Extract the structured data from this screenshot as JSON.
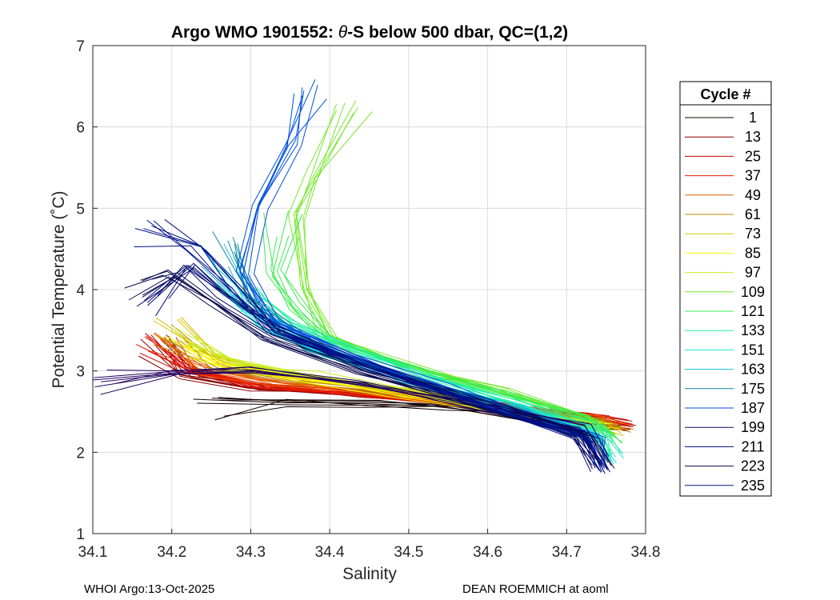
{
  "chart_data": {
    "type": "line",
    "title_prefix": "Argo WMO 1901552: ",
    "title_theta": "θ",
    "title_suffix": "-S below 500 dbar,  QC=(1,2)",
    "xlabel": "Salinity",
    "ylabel": "Potential Temperature (˚C)",
    "xlim": [
      34.1,
      34.8
    ],
    "ylim": [
      1,
      7
    ],
    "xticks": [
      "34.1",
      "34.2",
      "34.3",
      "34.4",
      "34.5",
      "34.6",
      "34.7",
      "34.8"
    ],
    "yticks": [
      "1",
      "2",
      "3",
      "4",
      "5",
      "6",
      "7"
    ],
    "grid": true,
    "legend_title": "Cycle #",
    "legend_position": "right-outside",
    "legend_entries": [
      {
        "label": "1",
        "color": "#140000"
      },
      {
        "label": "13",
        "color": "#8a0000"
      },
      {
        "label": "25",
        "color": "#c80000"
      },
      {
        "label": "37",
        "color": "#e61e00"
      },
      {
        "label": "49",
        "color": "#e65a00"
      },
      {
        "label": "61",
        "color": "#b88a00"
      },
      {
        "label": "73",
        "color": "#d8c000"
      },
      {
        "label": "85",
        "color": "#ffff00"
      },
      {
        "label": "97",
        "color": "#c8f020"
      },
      {
        "label": "109",
        "color": "#7ae830"
      },
      {
        "label": "121",
        "color": "#3aeb50"
      },
      {
        "label": "133",
        "color": "#20f0a0"
      },
      {
        "label": "151",
        "color": "#1ae8d8"
      },
      {
        "label": "163",
        "color": "#10c0d8"
      },
      {
        "label": "175",
        "color": "#0a8aa0"
      },
      {
        "label": "187",
        "color": "#0050e0"
      },
      {
        "label": "199",
        "color": "#200060"
      },
      {
        "label": "211",
        "color": "#000870"
      },
      {
        "label": "223",
        "color": "#0a0a50"
      },
      {
        "label": "235",
        "color": "#00108a"
      }
    ],
    "series_summary": [
      {
        "name": "1",
        "color": "#140000",
        "points": [
          [
            34.25,
            2.55
          ],
          [
            34.35,
            2.6
          ],
          [
            34.45,
            2.6
          ],
          [
            34.55,
            2.55
          ],
          [
            34.65,
            2.45
          ],
          [
            34.75,
            2.3
          ]
        ]
      },
      {
        "name": "13",
        "color": "#8a0000",
        "points": [
          [
            34.18,
            3.35
          ],
          [
            34.22,
            2.95
          ],
          [
            34.3,
            2.8
          ],
          [
            34.45,
            2.7
          ],
          [
            34.6,
            2.55
          ],
          [
            34.72,
            2.4
          ],
          [
            34.78,
            2.3
          ]
        ]
      },
      {
        "name": "25",
        "color": "#c80000",
        "points": [
          [
            34.17,
            3.3
          ],
          [
            34.22,
            3.0
          ],
          [
            34.3,
            2.82
          ],
          [
            34.45,
            2.72
          ],
          [
            34.6,
            2.58
          ],
          [
            34.72,
            2.45
          ],
          [
            34.78,
            2.35
          ]
        ]
      },
      {
        "name": "37",
        "color": "#e61e00",
        "points": [
          [
            34.18,
            3.25
          ],
          [
            34.23,
            2.98
          ],
          [
            34.32,
            2.8
          ],
          [
            34.47,
            2.7
          ],
          [
            34.62,
            2.55
          ],
          [
            34.74,
            2.42
          ],
          [
            34.77,
            2.32
          ]
        ]
      },
      {
        "name": "49",
        "color": "#e65a00",
        "points": [
          [
            34.19,
            3.3
          ],
          [
            34.24,
            3.0
          ],
          [
            34.33,
            2.85
          ],
          [
            34.48,
            2.72
          ],
          [
            34.63,
            2.55
          ],
          [
            34.74,
            2.4
          ],
          [
            34.77,
            2.3
          ]
        ]
      },
      {
        "name": "61",
        "color": "#b88a00",
        "points": [
          [
            34.2,
            3.4
          ],
          [
            34.26,
            3.05
          ],
          [
            34.36,
            2.9
          ],
          [
            34.5,
            2.72
          ],
          [
            34.64,
            2.5
          ],
          [
            34.74,
            2.38
          ],
          [
            34.77,
            2.28
          ]
        ]
      },
      {
        "name": "73",
        "color": "#d8c000",
        "points": [
          [
            34.2,
            3.5
          ],
          [
            34.26,
            3.15
          ],
          [
            34.36,
            2.95
          ],
          [
            34.5,
            2.75
          ],
          [
            34.64,
            2.5
          ],
          [
            34.74,
            2.35
          ],
          [
            34.77,
            2.25
          ]
        ]
      },
      {
        "name": "85",
        "color": "#ffff00",
        "points": [
          [
            34.21,
            3.3
          ],
          [
            34.27,
            3.05
          ],
          [
            34.37,
            2.92
          ],
          [
            34.5,
            2.7
          ],
          [
            34.65,
            2.48
          ],
          [
            34.75,
            2.33
          ]
        ]
      },
      {
        "name": "97",
        "color": "#c8f020",
        "points": [
          [
            34.21,
            3.4
          ],
          [
            34.28,
            3.1
          ],
          [
            34.38,
            2.95
          ],
          [
            34.5,
            2.72
          ],
          [
            34.65,
            2.45
          ],
          [
            34.75,
            2.3
          ]
        ]
      },
      {
        "name": "109",
        "color": "#7ae830",
        "points": [
          [
            34.43,
            6.2
          ],
          [
            34.38,
            5.4
          ],
          [
            34.36,
            4.9
          ],
          [
            34.37,
            4.0
          ],
          [
            34.4,
            3.4
          ],
          [
            34.5,
            3.05
          ],
          [
            34.62,
            2.75
          ],
          [
            34.72,
            2.45
          ],
          [
            34.76,
            2.2
          ]
        ]
      },
      {
        "name": "121",
        "color": "#3aeb50",
        "points": [
          [
            34.34,
            4.8
          ],
          [
            34.33,
            4.2
          ],
          [
            34.36,
            3.8
          ],
          [
            34.4,
            3.4
          ],
          [
            34.52,
            3.0
          ],
          [
            34.64,
            2.65
          ],
          [
            34.73,
            2.4
          ],
          [
            34.76,
            2.15
          ]
        ]
      },
      {
        "name": "133",
        "color": "#20f0a0",
        "points": [
          [
            34.3,
            3.9
          ],
          [
            34.35,
            3.6
          ],
          [
            34.42,
            3.3
          ],
          [
            34.52,
            2.95
          ],
          [
            34.64,
            2.6
          ],
          [
            34.74,
            2.3
          ],
          [
            34.76,
            1.95
          ]
        ]
      },
      {
        "name": "151",
        "color": "#1ae8d8",
        "points": [
          [
            34.27,
            4.0
          ],
          [
            34.32,
            3.55
          ],
          [
            34.4,
            3.2
          ],
          [
            34.52,
            2.85
          ],
          [
            34.64,
            2.55
          ],
          [
            34.74,
            2.25
          ],
          [
            34.76,
            1.9
          ]
        ]
      },
      {
        "name": "163",
        "color": "#10c0d8",
        "points": [
          [
            34.26,
            4.4
          ],
          [
            34.3,
            3.8
          ],
          [
            34.38,
            3.3
          ],
          [
            34.5,
            2.9
          ],
          [
            34.64,
            2.55
          ],
          [
            34.74,
            2.2
          ]
        ]
      },
      {
        "name": "175",
        "color": "#0a8aa0",
        "points": [
          [
            34.27,
            4.6
          ],
          [
            34.3,
            3.9
          ],
          [
            34.38,
            3.3
          ],
          [
            34.5,
            2.88
          ],
          [
            34.64,
            2.5
          ],
          [
            34.74,
            2.15
          ]
        ]
      },
      {
        "name": "187",
        "color": "#0050e0",
        "points": [
          [
            34.38,
            6.5
          ],
          [
            34.35,
            5.8
          ],
          [
            34.31,
            5.0
          ],
          [
            34.29,
            4.2
          ],
          [
            34.33,
            3.6
          ],
          [
            34.42,
            3.2
          ],
          [
            34.54,
            2.8
          ],
          [
            34.66,
            2.45
          ],
          [
            34.74,
            2.15
          ],
          [
            34.745,
            1.85
          ]
        ]
      },
      {
        "name": "199",
        "color": "#200060",
        "points": [
          [
            34.12,
            2.85
          ],
          [
            34.2,
            3.0
          ],
          [
            34.3,
            3.0
          ],
          [
            34.45,
            2.85
          ],
          [
            34.6,
            2.55
          ],
          [
            34.72,
            2.3
          ],
          [
            34.745,
            1.9
          ]
        ]
      },
      {
        "name": "211",
        "color": "#000870",
        "points": [
          [
            34.17,
            3.85
          ],
          [
            34.22,
            4.3
          ],
          [
            34.27,
            3.9
          ],
          [
            34.33,
            3.5
          ],
          [
            34.45,
            3.05
          ],
          [
            34.6,
            2.6
          ],
          [
            34.72,
            2.25
          ],
          [
            34.745,
            1.8
          ]
        ]
      },
      {
        "name": "223",
        "color": "#0a0a50",
        "points": [
          [
            34.15,
            4.0
          ],
          [
            34.2,
            4.2
          ],
          [
            34.26,
            3.8
          ],
          [
            34.32,
            3.4
          ],
          [
            34.44,
            3.0
          ],
          [
            34.6,
            2.55
          ],
          [
            34.72,
            2.2
          ],
          [
            34.745,
            1.8
          ]
        ]
      },
      {
        "name": "235",
        "color": "#00108a",
        "points": [
          [
            34.17,
            4.7
          ],
          [
            34.23,
            4.5
          ],
          [
            34.28,
            4.0
          ],
          [
            34.33,
            3.5
          ],
          [
            34.45,
            3.05
          ],
          [
            34.6,
            2.55
          ],
          [
            34.72,
            2.2
          ],
          [
            34.745,
            1.75
          ]
        ]
      }
    ]
  },
  "footer": {
    "left": "WHOI Argo:13-Oct-2025",
    "right": "DEAN ROEMMICH at aoml"
  }
}
